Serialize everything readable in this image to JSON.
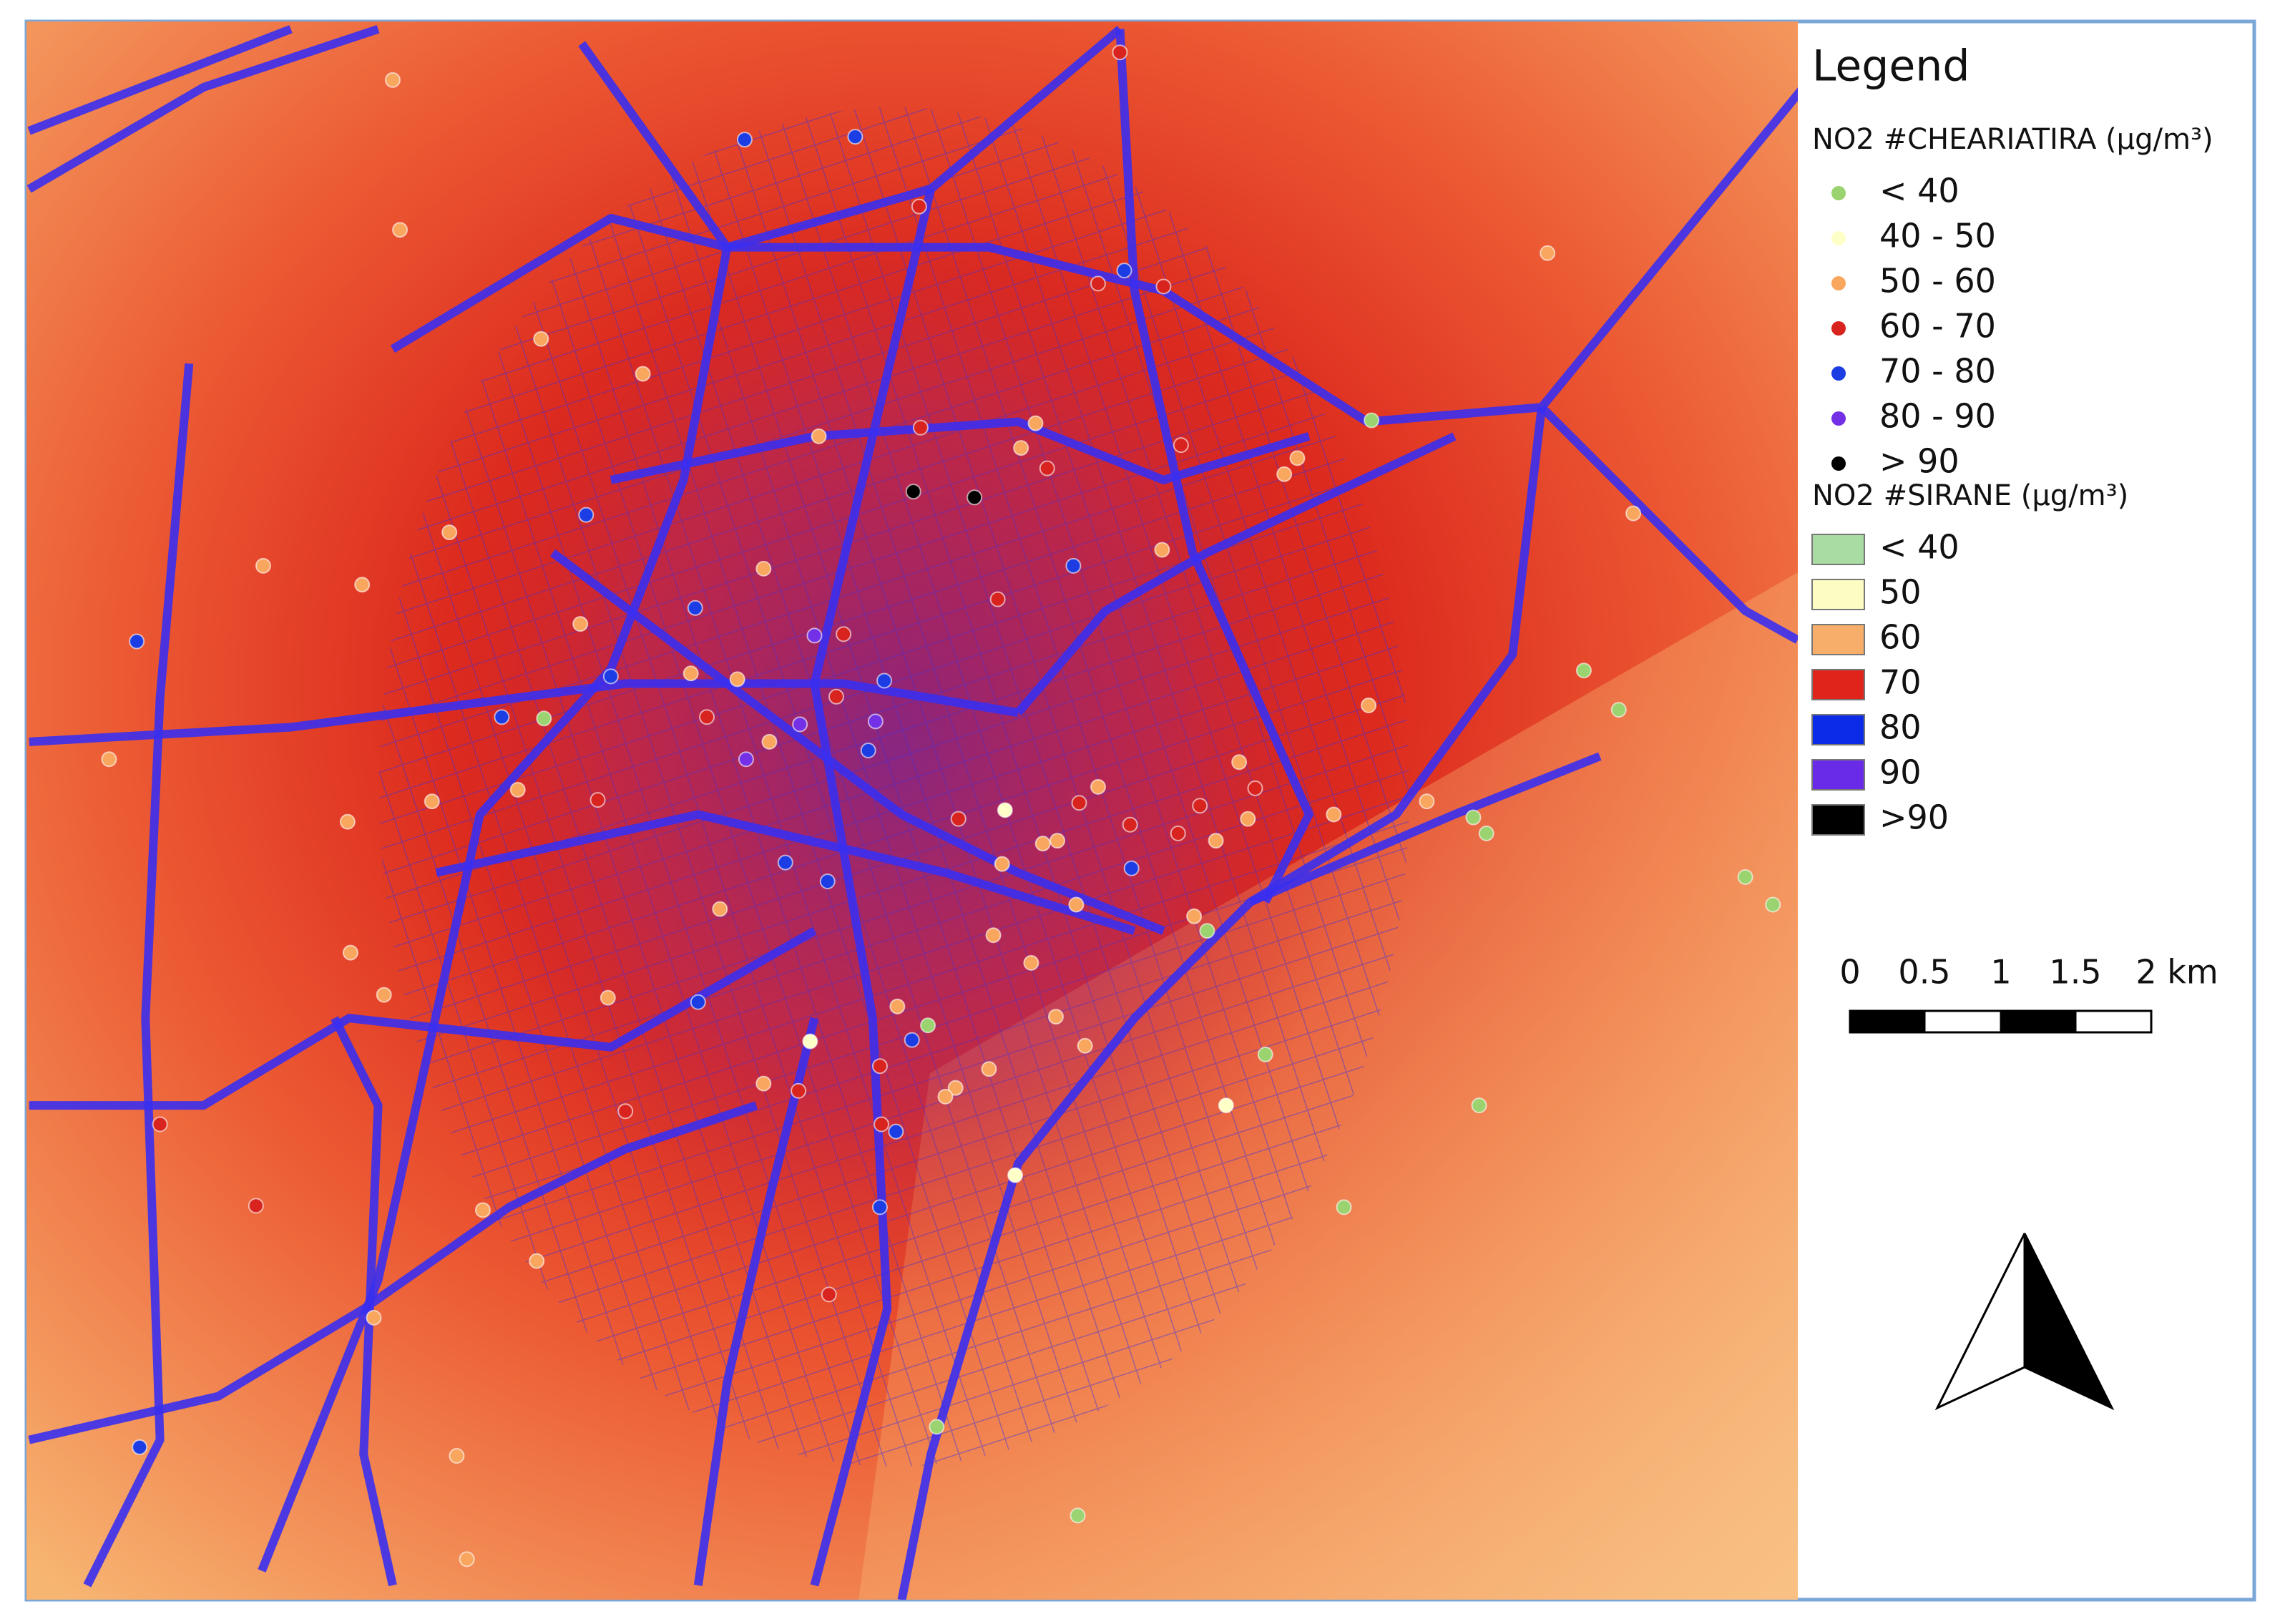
{
  "legend": {
    "title": "Legend",
    "sections": [
      {
        "title": "NO2 #CHEARIATIRA (µg/m³)",
        "kind": "dot",
        "items": [
          {
            "label": "< 40",
            "color": "#9ad36f"
          },
          {
            "label": "40 - 50",
            "color": "#ffffc8"
          },
          {
            "label": "50 - 60",
            "color": "#f9a65f"
          },
          {
            "label": "60 - 70",
            "color": "#d8231f"
          },
          {
            "label": "70 - 80",
            "color": "#1b3de3"
          },
          {
            "label": "80 - 90",
            "color": "#7330e6"
          },
          {
            "label": "> 90",
            "color": "#000000"
          }
        ]
      },
      {
        "title": "NO2 #SIRANE (µg/m³)",
        "kind": "swatch",
        "items": [
          {
            "label": "< 40",
            "color": "#a9dca2"
          },
          {
            "label": "50",
            "color": "#fdfdc3"
          },
          {
            "label": "60",
            "color": "#f6ae6a"
          },
          {
            "label": "70",
            "color": "#e0241c"
          },
          {
            "label": "80",
            "color": "#0b2be8"
          },
          {
            "label": "90",
            "color": "#6a2be8"
          },
          {
            "label": ">90",
            "color": "#000000"
          }
        ]
      }
    ]
  },
  "scale_bar": {
    "labels": [
      "0",
      "0.5",
      "1",
      "1.5",
      "2 km"
    ]
  }
}
